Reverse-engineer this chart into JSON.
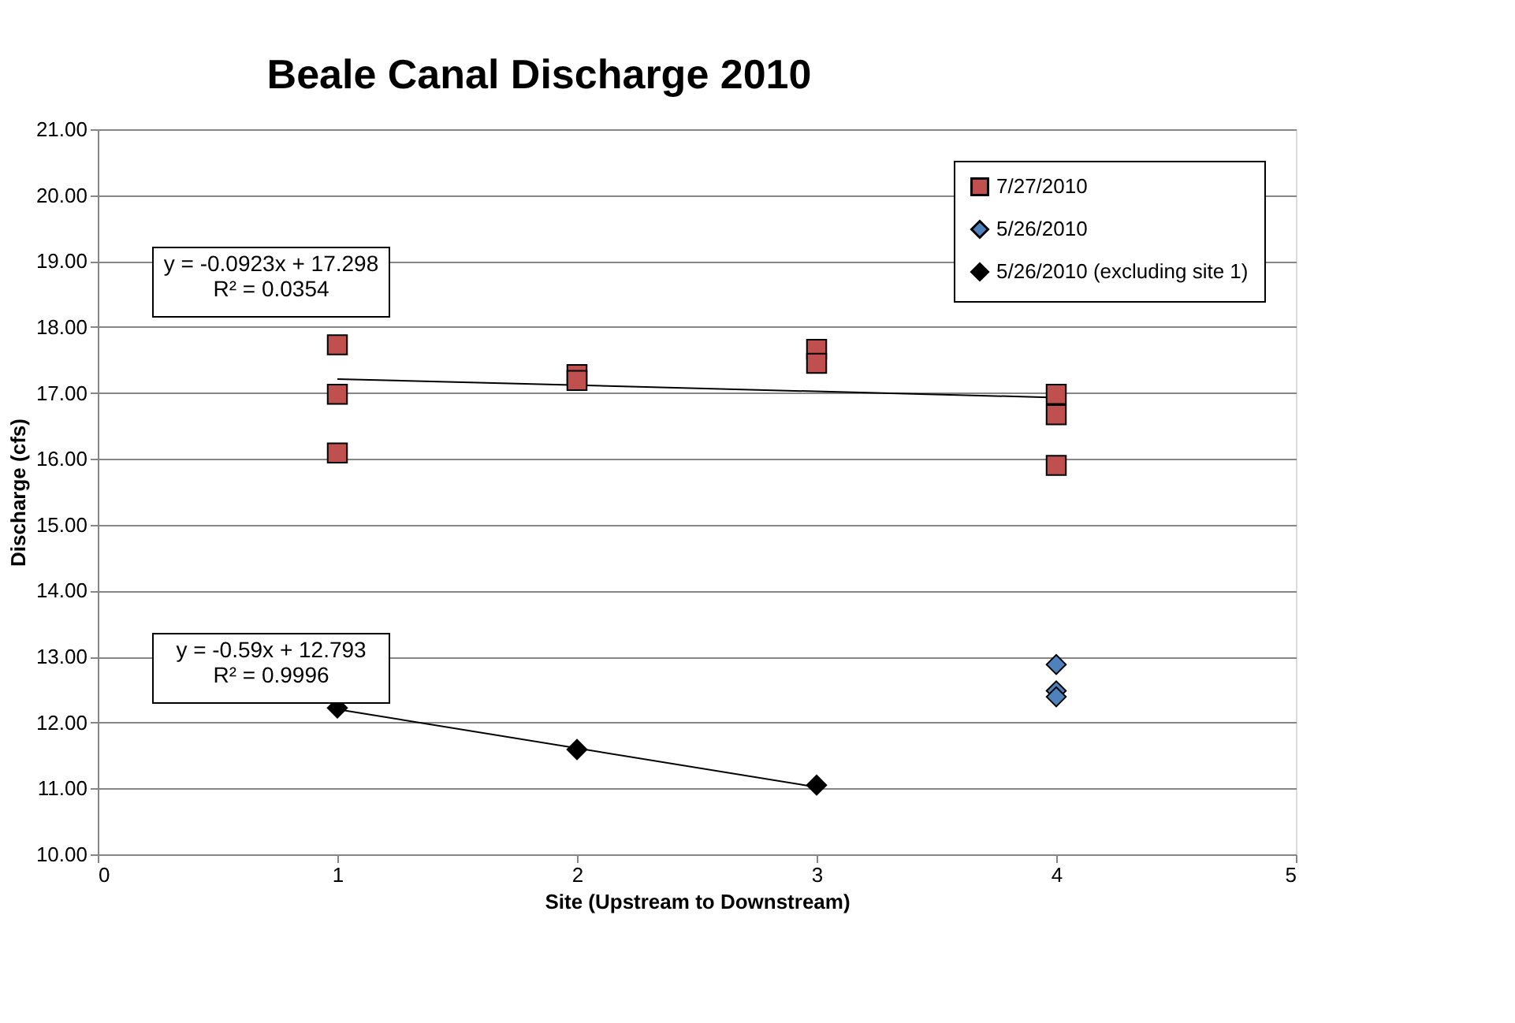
{
  "chart_data": {
    "type": "scatter",
    "title": "Beale Canal Discharge 2010",
    "xlabel": "Site (Upstream to Downstream)",
    "ylabel": "Discharge (cfs)",
    "xlim": [
      0,
      5
    ],
    "xticks": [
      0,
      1,
      2,
      3,
      4,
      5
    ],
    "ylim": [
      10,
      21
    ],
    "yticks": [
      {
        "value": 10,
        "label": "10.00"
      },
      {
        "value": 11,
        "label": "11.00"
      },
      {
        "value": 12,
        "label": "12.00"
      },
      {
        "value": 13,
        "label": "13.00"
      },
      {
        "value": 14,
        "label": "14.00"
      },
      {
        "value": 15,
        "label": "15.00"
      },
      {
        "value": 16,
        "label": "16.00"
      },
      {
        "value": 17,
        "label": "17.00"
      },
      {
        "value": 18,
        "label": "18.00"
      },
      {
        "value": 19,
        "label": "19.00"
      },
      {
        "value": 20,
        "label": "20.00"
      },
      {
        "value": 21,
        "label": "21.00"
      }
    ],
    "grid": "y",
    "legend": "top right",
    "series": [
      {
        "name": "7/27/2010",
        "color": "#c0504d",
        "marker": "square",
        "x": [
          1,
          1,
          1,
          2,
          2,
          3,
          3,
          4,
          4,
          4
        ],
        "values": [
          17.73,
          16.98,
          16.09,
          17.28,
          17.19,
          17.66,
          17.45,
          16.98,
          16.67,
          15.9
        ]
      },
      {
        "name": "5/26/2010",
        "color": "#4f81bd",
        "marker": "diamond",
        "x": [
          4,
          4,
          4
        ],
        "values": [
          12.88,
          12.48,
          12.39
        ]
      },
      {
        "name": "5/26/2010 (excluding site 1)",
        "color": "#000000",
        "marker": "diamond",
        "x": [
          1,
          2,
          3
        ],
        "values": [
          12.22,
          11.59,
          11.05
        ]
      },
      {
        "type": "line",
        "color": "#000000",
        "x": [
          1,
          4
        ],
        "values": [
          17.21,
          16.93
        ]
      },
      {
        "type": "line",
        "color": "#000000",
        "x": [
          1,
          3
        ],
        "values": [
          12.2,
          11.02
        ]
      }
    ],
    "annotations": [
      "y = -0.0923x + 17.298\nR² = 0.0354",
      "y = -0.59x + 12.793\nR² = 0.9996"
    ]
  }
}
